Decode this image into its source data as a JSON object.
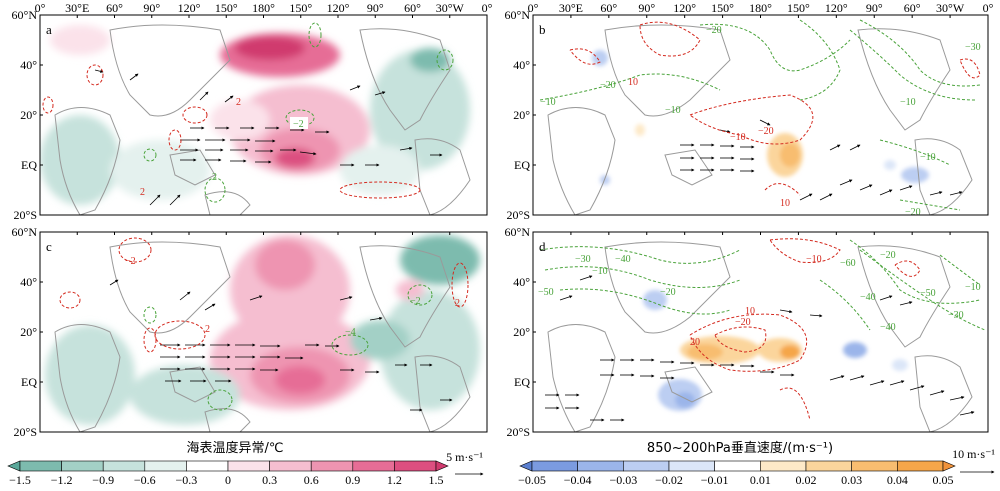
{
  "panels": [
    {
      "id": "a",
      "label": "a"
    },
    {
      "id": "b",
      "label": "b"
    },
    {
      "id": "c",
      "label": "c"
    },
    {
      "id": "d",
      "label": "d"
    }
  ],
  "lon_labels": [
    "0°",
    "30°E",
    "60°",
    "90°",
    "120°",
    "150°",
    "180°",
    "150°",
    "120°",
    "90°",
    "60°",
    "30°W",
    "0°"
  ],
  "lat_labels": [
    "60°N",
    "40°",
    "20°",
    "EQ",
    "20°S"
  ],
  "contour_labels": {
    "a": [
      "2",
      "−2",
      "2",
      "2"
    ],
    "b": [
      "10",
      "−20",
      "10",
      "−10",
      "−20",
      "−10",
      "−10",
      "−20",
      "−30",
      "−10",
      "−10",
      "−20"
    ],
    "c": [
      "−2",
      "2",
      "2",
      "−2",
      "−4"
    ],
    "d": [
      "−10",
      "10",
      "−20",
      "20",
      "−30",
      "−10",
      "−40",
      "−20",
      "−50",
      "−40",
      "−30",
      "−20",
      "−10",
      "−50",
      "−60",
      "−40"
    ]
  },
  "legend_left": {
    "title": "海表温度异常/℃",
    "ticks": [
      "−1.5",
      "−1.2",
      "−0.9",
      "−0.6",
      "−0.3",
      "0",
      "0.3",
      "0.6",
      "0.9",
      "1.2",
      "1.5"
    ],
    "colors": [
      "#5aa89a",
      "#7dbbae",
      "#a3d0c6",
      "#c6e2dc",
      "#e4f1ee",
      "#ffffff",
      "#fbe2ea",
      "#f5bed0",
      "#ee94b1",
      "#e66d96",
      "#dc4f80",
      "#d03a6e"
    ],
    "ref_vector": "5 m·s⁻¹"
  },
  "legend_right": {
    "title": "850~200hPa垂直速度/(m·s⁻¹)",
    "ticks": [
      "−0.05",
      "−0.04",
      "−0.03",
      "−0.02",
      "−0.01",
      "0.01",
      "0.02",
      "0.03",
      "0.04",
      "0.05"
    ],
    "colors": [
      "#5a7fcf",
      "#7b9be0",
      "#9bb5ea",
      "#bccef2",
      "#dbe6f8",
      "#ffffff",
      "#fde9c8",
      "#fbd59c",
      "#f8bd70",
      "#f5a64a",
      "#f0923a"
    ],
    "ref_vector": "10 m·s⁻¹"
  },
  "style": {
    "land_outline": "#9a9a9a",
    "positive_contour": "#d42a1f",
    "negative_contour": "#4aa33b",
    "vector": "#000000"
  }
}
